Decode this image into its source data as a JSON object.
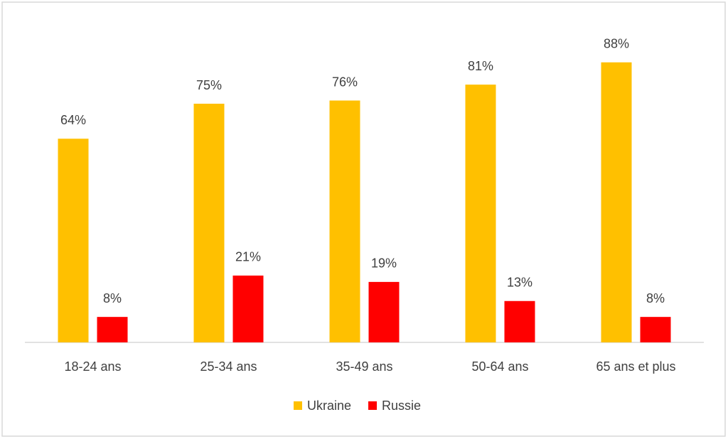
{
  "chart_data": {
    "type": "bar",
    "categories": [
      "18-24 ans",
      "25-34 ans",
      "35-49 ans",
      "50-64 ans",
      "65 ans et plus"
    ],
    "series": [
      {
        "name": "Ukraine",
        "color": "#ffc000",
        "values": [
          64,
          75,
          76,
          81,
          88
        ],
        "value_labels": [
          "64%",
          "75%",
          "76%",
          "81%",
          "88%"
        ]
      },
      {
        "name": "Russie",
        "color": "#ff0000",
        "values": [
          8,
          21,
          19,
          13,
          8
        ],
        "value_labels": [
          "8%",
          "21%",
          "19%",
          "13%",
          "8%"
        ]
      }
    ],
    "ylim": [
      0,
      100
    ],
    "grid": false,
    "legend": "bottom"
  }
}
